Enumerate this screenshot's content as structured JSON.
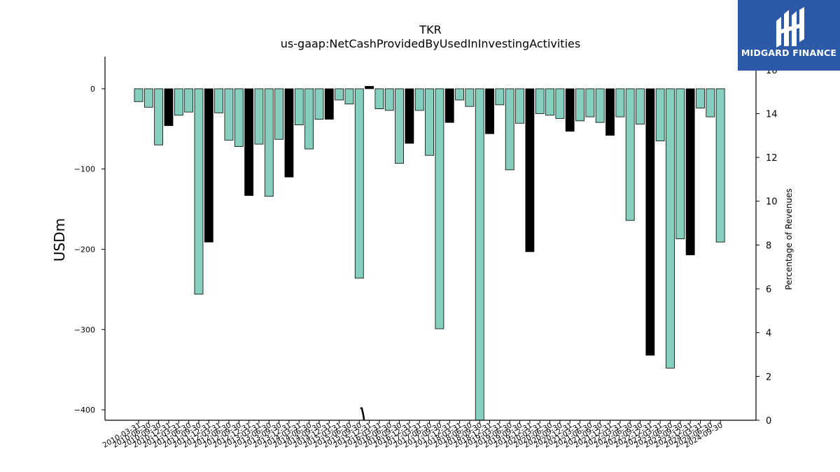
{
  "brand": {
    "name": "MIDGARD FINANCE",
    "icon": "mg-monogram-icon",
    "color": "#2c5aa9"
  },
  "chart_data": {
    "type": "bar",
    "title": "TKR",
    "subtitle": "us-gaap:NetCashProvidedByUsedInInvestingActivities",
    "ylabel": "USDm",
    "y2label": "Percentage of Revenues",
    "ylim": [
      -413,
      40
    ],
    "y2lim": [
      0,
      16.6
    ],
    "yticks": [
      0,
      -100,
      -200,
      -300,
      -400
    ],
    "y2ticks": [
      0,
      2,
      4,
      6,
      8,
      10,
      12,
      14,
      16
    ],
    "colors": {
      "quarterly": "#86cebe",
      "annual": "#000000"
    },
    "categories": [
      "2010-03-31",
      "2010-06-30",
      "2010-09-30",
      "2010-12-31",
      "2011-03-31",
      "2011-06-30",
      "2011-09-30",
      "2011-12-31",
      "2012-03-31",
      "2012-06-30",
      "2012-09-30",
      "2012-12-31",
      "2013-03-31",
      "2013-06-30",
      "2013-09-30",
      "2013-12-31",
      "2014-03-31",
      "2014-06-30",
      "2014-09-30",
      "2014-12-31",
      "2015-03-31",
      "2015-06-30",
      "2015-09-30",
      "2015-12-31",
      "2016-03-31",
      "2016-06-30",
      "2016-09-30",
      "2016-12-31",
      "2017-03-31",
      "2017-06-30",
      "2017-09-30",
      "2017-12-31",
      "2018-03-31",
      "2018-06-30",
      "2018-09-30",
      "2018-12-31",
      "2019-03-31",
      "2019-06-30",
      "2019-09-30",
      "2019-12-31",
      "2020-03-31",
      "2020-06-30",
      "2020-09-30",
      "2020-12-31",
      "2021-03-31",
      "2021-06-30",
      "2021-09-30",
      "2021-12-31",
      "2022-03-31",
      "2022-06-30",
      "2022-09-30",
      "2022-12-31",
      "2023-03-31",
      "2023-06-30",
      "2023-09-30",
      "2023-12-31",
      "2024-03-31",
      "2024-06-30",
      "2024-09-30"
    ],
    "values": [
      -16,
      -23,
      -70,
      -46,
      -33,
      -29,
      -256,
      -191,
      -30,
      -64,
      -72,
      -133,
      -69,
      -134,
      -63,
      -110,
      -45,
      -75,
      -38,
      -38,
      -14,
      -19,
      -236,
      3,
      -25,
      -27,
      -93,
      -68,
      -27,
      -83,
      -299,
      -42,
      -14,
      -22,
      -415,
      -56,
      -20,
      -101,
      -43,
      -203,
      -31,
      -33,
      -37,
      -53,
      -40,
      -35,
      -42,
      -58,
      -35,
      -164,
      -44,
      -332,
      -65,
      -348,
      -187,
      -207,
      -24,
      -35,
      -191
    ],
    "annual_flags": [
      0,
      0,
      0,
      1,
      0,
      0,
      0,
      1,
      0,
      0,
      0,
      1,
      0,
      0,
      0,
      1,
      0,
      0,
      0,
      1,
      0,
      0,
      0,
      1,
      0,
      0,
      0,
      1,
      0,
      0,
      0,
      1,
      0,
      0,
      0,
      1,
      0,
      0,
      0,
      1,
      0,
      0,
      0,
      1,
      0,
      0,
      0,
      1,
      0,
      0,
      0,
      1,
      0,
      0,
      0,
      1,
      0,
      0,
      0
    ],
    "pct_line": {
      "x": [
        22.1,
        22.25,
        22.4,
        22.65
      ],
      "y": [
        0.55,
        0.55,
        0.25,
        -0.5
      ]
    }
  }
}
